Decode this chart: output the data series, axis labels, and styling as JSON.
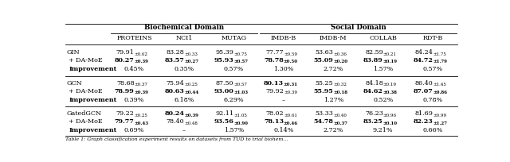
{
  "title_bio": "Biochemical Domain",
  "title_soc": "Social Domain",
  "col_headers": [
    "PROTEINS",
    "NCI1",
    "MUTAG",
    "IMDB-B",
    "IMDB-M",
    "COLLAB",
    "RDT-B"
  ],
  "row_groups": [
    {
      "model": "GIN",
      "base": [
        "79.91±0.62",
        "83.28±0.33",
        "95.39±0.75",
        "77.77±0.59",
        "53.63±0.36",
        "82.59±0.21",
        "84.24±1.75"
      ],
      "base_bold": [
        false,
        false,
        false,
        false,
        false,
        false,
        false
      ],
      "damoe": [
        "80.27±0.39",
        "83.57±0.27",
        "95.93±0.57",
        "78.78±0.50",
        "55.09±0.20",
        "83.89±0.19",
        "84.72±1.79"
      ],
      "damoe_bold": [
        true,
        true,
        true,
        true,
        true,
        true,
        true
      ],
      "improvement": [
        "0.45%",
        "0.35%",
        "0.57%",
        "1.30%",
        "2.72%",
        "1.57%",
        "0.57%"
      ]
    },
    {
      "model": "GCN",
      "base": [
        "78.68±0.37",
        "75.94±0.25",
        "87.50±0.57",
        "80.13±0.31",
        "55.25±0.32",
        "84.18±0.19",
        "86.40±1.45"
      ],
      "base_bold": [
        false,
        false,
        false,
        true,
        false,
        false,
        false
      ],
      "damoe": [
        "78.99±0.39",
        "80.63±0.44",
        "93.00±1.03",
        "79.92±0.39",
        "55.95±0.18",
        "84.62±0.38",
        "87.07±0.86"
      ],
      "damoe_bold": [
        true,
        true,
        true,
        false,
        true,
        true,
        true
      ],
      "improvement": [
        "0.39%",
        "6.18%",
        "6.29%",
        "–",
        "1.27%",
        "0.52%",
        "0.78%"
      ]
    },
    {
      "model": "GatedGCN",
      "base": [
        "79.22±0.25",
        "80.24±0.39",
        "92.11±1.05",
        "78.02±0.61",
        "53.33±0.40",
        "76.23±0.96",
        "81.69±0.99"
      ],
      "base_bold": [
        false,
        true,
        false,
        false,
        false,
        false,
        false
      ],
      "damoe": [
        "79.77±0.43",
        "78.40±0.48",
        "93.56±0.90",
        "78.13±0.46",
        "54.78±0.37",
        "83.25±0.10",
        "82.23±1.27"
      ],
      "damoe_bold": [
        true,
        false,
        true,
        true,
        true,
        true,
        true
      ],
      "improvement": [
        "0.69%",
        "–",
        "1.57%",
        "0.14%",
        "2.72%",
        "9.21%",
        "0.66%"
      ]
    }
  ],
  "caption": "Table 1: Graph classification experiment results on datasets from TUD to trial biohem..."
}
